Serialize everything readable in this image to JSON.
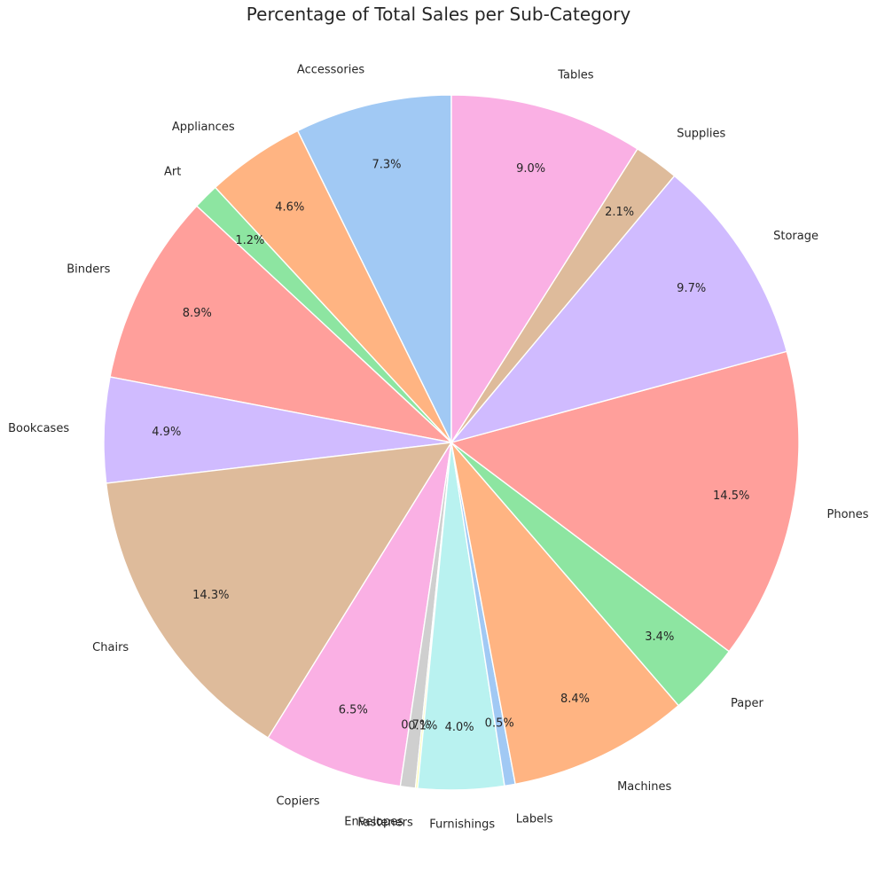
{
  "chart_data": {
    "type": "pie",
    "title": "Percentage of Total Sales per Sub-Category",
    "start_angle_deg": 90,
    "direction": "counterclockwise",
    "slices": [
      {
        "label": "Accessories",
        "value": 7.3,
        "pct_label": "7.3%",
        "color": "#a1c9f4"
      },
      {
        "label": "Appliances",
        "value": 4.6,
        "pct_label": "4.6%",
        "color": "#ffb482"
      },
      {
        "label": "Art",
        "value": 1.2,
        "pct_label": "1.2%",
        "color": "#8de5a1"
      },
      {
        "label": "Binders",
        "value": 8.9,
        "pct_label": "8.9%",
        "color": "#ff9f9b"
      },
      {
        "label": "Bookcases",
        "value": 4.9,
        "pct_label": "4.9%",
        "color": "#d0bbff"
      },
      {
        "label": "Chairs",
        "value": 14.3,
        "pct_label": "14.3%",
        "color": "#debb9b"
      },
      {
        "label": "Copiers",
        "value": 6.5,
        "pct_label": "6.5%",
        "color": "#fab0e4"
      },
      {
        "label": "Envelopes",
        "value": 0.7,
        "pct_label": "0.7%",
        "color": "#cfcfcf"
      },
      {
        "label": "Fasteners",
        "value": 0.1,
        "pct_label": "0.1%",
        "color": "#fffea3"
      },
      {
        "label": "Furnishings",
        "value": 4.0,
        "pct_label": "4.0%",
        "color": "#b9f2f0"
      },
      {
        "label": "Labels",
        "value": 0.5,
        "pct_label": "0.5%",
        "color": "#a1c9f4"
      },
      {
        "label": "Machines",
        "value": 8.4,
        "pct_label": "8.4%",
        "color": "#ffb482"
      },
      {
        "label": "Paper",
        "value": 3.4,
        "pct_label": "3.4%",
        "color": "#8de5a1"
      },
      {
        "label": "Phones",
        "value": 14.5,
        "pct_label": "14.5%",
        "color": "#ff9f9b"
      },
      {
        "label": "Storage",
        "value": 9.7,
        "pct_label": "9.7%",
        "color": "#d0bbff"
      },
      {
        "label": "Supplies",
        "value": 2.1,
        "pct_label": "2.1%",
        "color": "#debb9b"
      },
      {
        "label": "Tables",
        "value": 9.0,
        "pct_label": "9.0%",
        "color": "#fab0e4"
      }
    ]
  }
}
